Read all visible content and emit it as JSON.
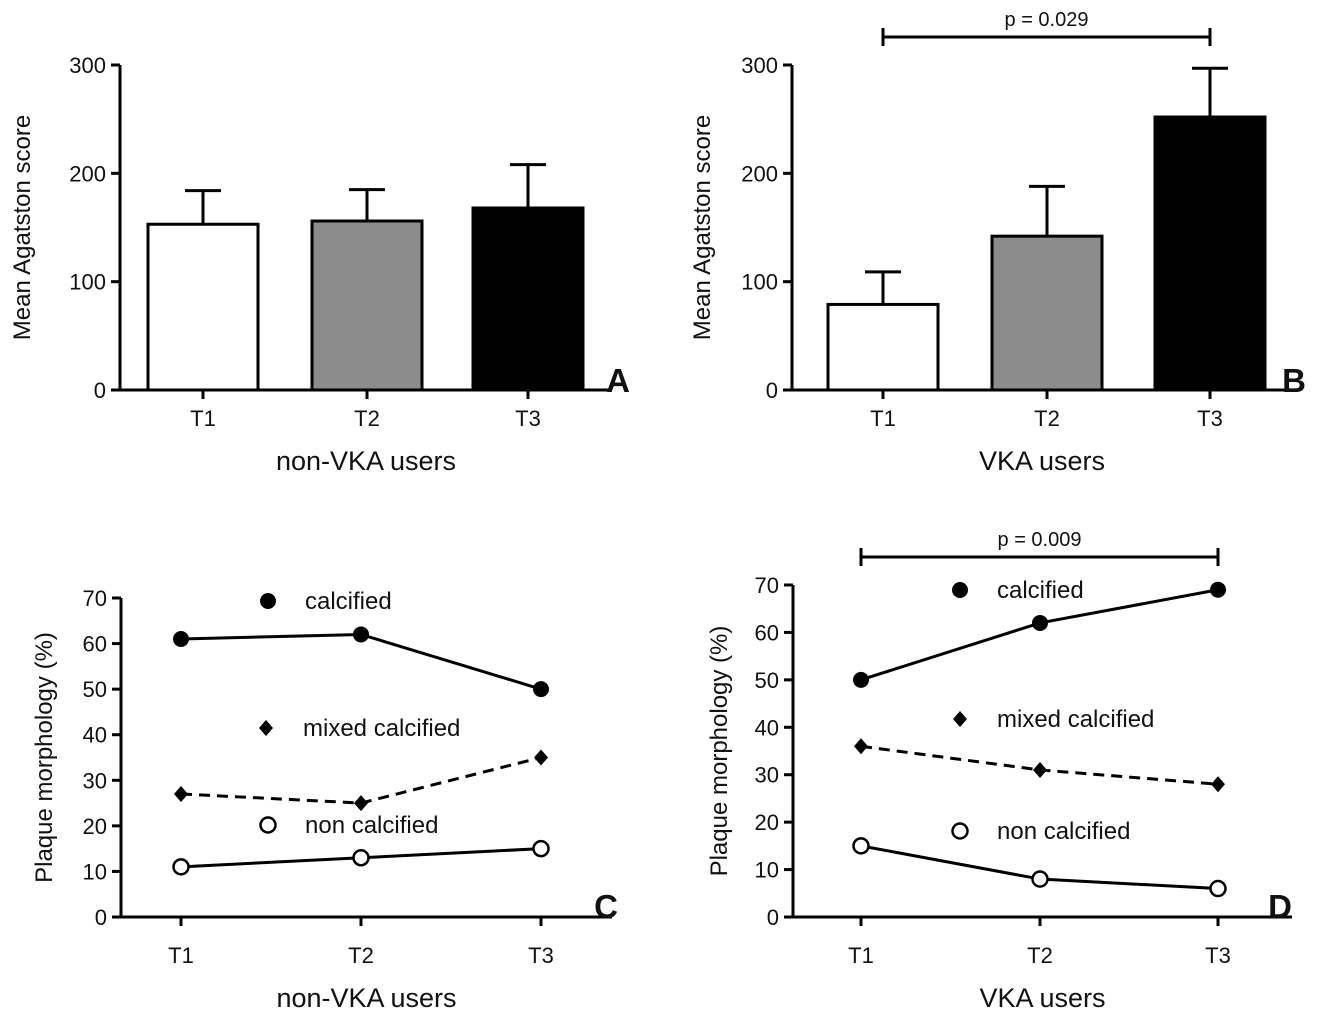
{
  "chart_data": [
    {
      "panel": "A",
      "type": "bar",
      "categories": [
        "T1",
        "T2",
        "T3"
      ],
      "values": [
        153,
        156,
        168
      ],
      "errors": [
        31,
        29,
        40
      ],
      "bar_colors": [
        "#ffffff",
        "#8c8c8c",
        "#000000"
      ],
      "xlabel": "non-VKA users",
      "ylabel": "Mean Agatston score",
      "ylim": [
        0,
        300
      ],
      "yticks": [
        0,
        100,
        200,
        300
      ]
    },
    {
      "panel": "B",
      "type": "bar",
      "categories": [
        "T1",
        "T2",
        "T3"
      ],
      "values": [
        79,
        142,
        252
      ],
      "errors": [
        30,
        46,
        45
      ],
      "bar_colors": [
        "#ffffff",
        "#8c8c8c",
        "#000000"
      ],
      "xlabel": "VKA users",
      "ylabel": "Mean Agatston score",
      "ylim": [
        0,
        300
      ],
      "yticks": [
        0,
        100,
        200,
        300
      ],
      "significance": {
        "text": "p = 0.029",
        "from": "T1",
        "to": "T3"
      }
    },
    {
      "panel": "C",
      "type": "line",
      "x": [
        "T1",
        "T2",
        "T3"
      ],
      "series": [
        {
          "name": "calcified",
          "values": [
            61,
            62,
            50
          ],
          "marker": "filled-circle",
          "line": "solid"
        },
        {
          "name": "mixed calcified",
          "values": [
            27,
            25,
            35
          ],
          "marker": "diamond",
          "line": "dashed"
        },
        {
          "name": "non calcified",
          "values": [
            11,
            13,
            15
          ],
          "marker": "open-circle",
          "line": "solid"
        }
      ],
      "xlabel": "non-VKA users",
      "ylabel": "Plaque morphology (%)",
      "ylim": [
        0,
        70
      ],
      "yticks": [
        0,
        10,
        20,
        30,
        40,
        50,
        60,
        70
      ]
    },
    {
      "panel": "D",
      "type": "line",
      "x": [
        "T1",
        "T2",
        "T3"
      ],
      "series": [
        {
          "name": "calcified",
          "values": [
            50,
            62,
            69
          ],
          "marker": "filled-circle",
          "line": "solid"
        },
        {
          "name": "mixed calcified",
          "values": [
            36,
            31,
            28
          ],
          "marker": "diamond",
          "line": "dashed"
        },
        {
          "name": "non calcified",
          "values": [
            15,
            8,
            6
          ],
          "marker": "open-circle",
          "line": "solid"
        }
      ],
      "xlabel": "VKA users",
      "ylabel": "Plaque morphology (%)",
      "ylim": [
        0,
        70
      ],
      "yticks": [
        0,
        10,
        20,
        30,
        40,
        50,
        60,
        70
      ],
      "significance": {
        "text": "p = 0.009",
        "from": "T1",
        "to": "T3"
      }
    }
  ]
}
